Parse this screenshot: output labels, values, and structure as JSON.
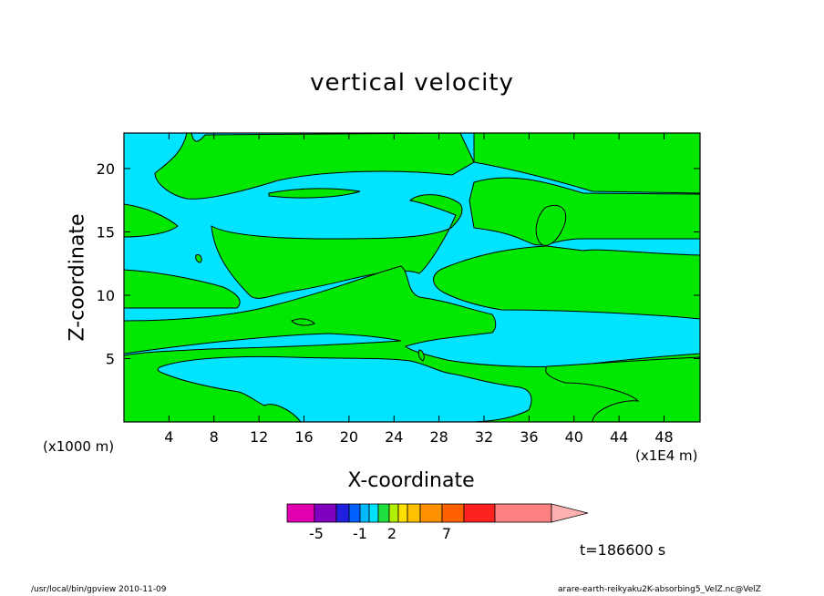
{
  "chart_data": {
    "type": "contour",
    "title": "vertical velocity",
    "xlabel": "X-coordinate",
    "ylabel": "Z-coordinate",
    "x_unit_left": "(x1000 m)",
    "x_unit_right": "(x1E4 m)",
    "x_ticks": [
      "4",
      "8",
      "12",
      "16",
      "20",
      "24",
      "28",
      "32",
      "36",
      "40",
      "44",
      "48"
    ],
    "y_ticks": [
      "5",
      "10",
      "15",
      "20"
    ],
    "xlim": [
      0,
      51.2
    ],
    "ylim": [
      0,
      22.8
    ],
    "grid": false,
    "colorbar": {
      "levels_colors": [
        "#e000b0",
        "#8000c0",
        "#2020e0",
        "#0060ff",
        "#00b8ff",
        "#00e0ff",
        "#20e040",
        "#b0f000",
        "#ffe000",
        "#ffc000",
        "#ff9000",
        "#ff6000",
        "#ff2020",
        "#ff8080",
        "#ffb0b0"
      ],
      "labels": [
        "-5",
        "-1",
        "2",
        "7"
      ]
    },
    "fill_colors": {
      "negative": "#00e4ff",
      "positive": "#00e800"
    },
    "contour_line_color": "#000000"
  },
  "annotations": {
    "timestamp": "t=186600 s",
    "footer_left": "/usr/local/bin/gpview   2010-11-09",
    "footer_right": "arare-earth-reikyaku2K-absorbing5_VelZ.nc@VelZ"
  }
}
